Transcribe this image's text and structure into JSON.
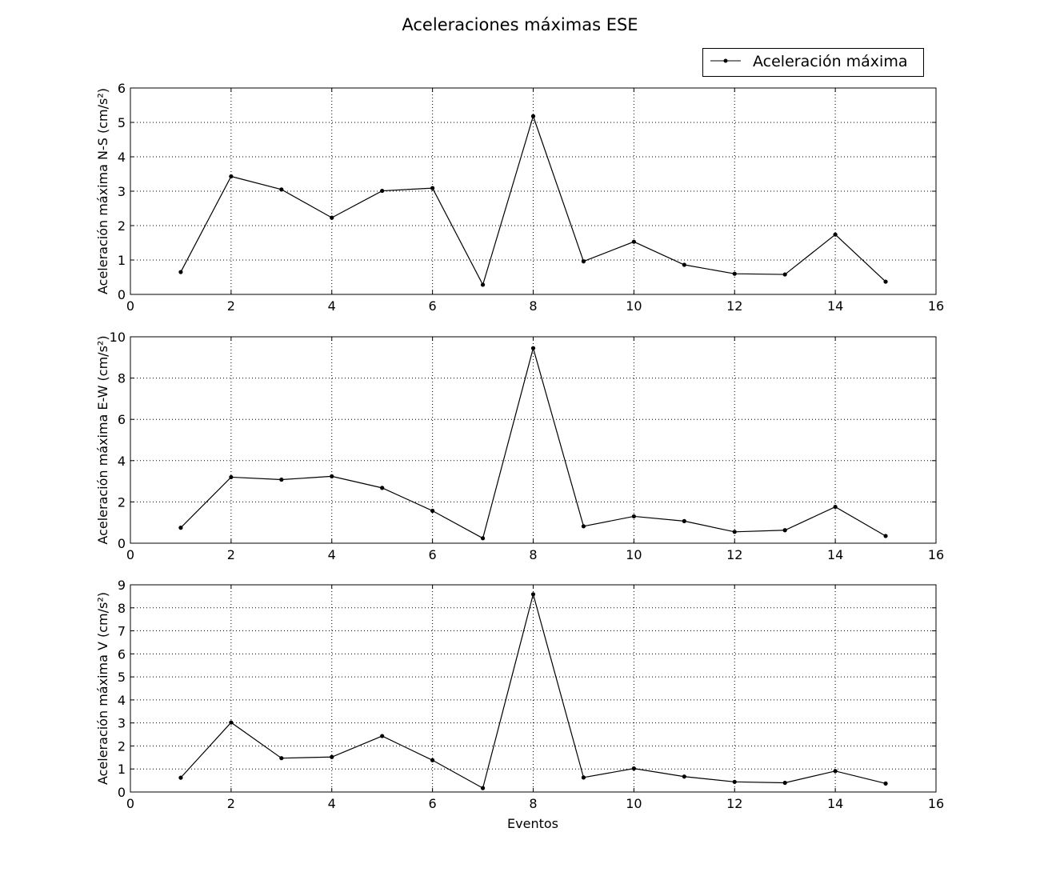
{
  "chart_data": {
    "type": "line",
    "title": "Aceleraciones máximas ESE",
    "xlabel": "Eventos",
    "legend": {
      "label": "Aceleración máxima",
      "placement": "top-right"
    },
    "grid": true,
    "colors": {
      "line": "#000000",
      "grid": "#000000",
      "background": "#ffffff"
    },
    "x": [
      1,
      2,
      3,
      4,
      5,
      6,
      7,
      8,
      9,
      10,
      11,
      12,
      13,
      14,
      15
    ],
    "panels": [
      {
        "ylabel": "Aceleración máxima N-S (cm/s²)",
        "xlim": [
          0,
          16
        ],
        "ylim": [
          0,
          6
        ],
        "xticks": [
          0,
          2,
          4,
          6,
          8,
          10,
          12,
          14,
          16
        ],
        "yticks": [
          0,
          1,
          2,
          3,
          4,
          5,
          6
        ],
        "series": [
          {
            "name": "Aceleración máxima",
            "values": [
              0.65,
              3.43,
              3.05,
              2.23,
              3.01,
              3.09,
              0.28,
              5.18,
              0.96,
              1.53,
              0.86,
              0.6,
              0.58,
              1.74,
              0.37
            ]
          }
        ]
      },
      {
        "ylabel": "Aceleración máxima E-W (cm/s²)",
        "xlim": [
          0,
          16
        ],
        "ylim": [
          0,
          10
        ],
        "xticks": [
          0,
          2,
          4,
          6,
          8,
          10,
          12,
          14,
          16
        ],
        "yticks": [
          0,
          2,
          4,
          6,
          8,
          10
        ],
        "series": [
          {
            "name": "Aceleración máxima",
            "values": [
              0.75,
              3.2,
              3.08,
              3.24,
              2.68,
              1.57,
              0.24,
              9.45,
              0.82,
              1.3,
              1.07,
              0.55,
              0.63,
              1.76,
              0.35
            ]
          }
        ]
      },
      {
        "ylabel": "Aceleración máxima V (cm/s²)",
        "xlim": [
          0,
          16
        ],
        "ylim": [
          0,
          9
        ],
        "xticks": [
          0,
          2,
          4,
          6,
          8,
          10,
          12,
          14,
          16
        ],
        "yticks": [
          0,
          1,
          2,
          3,
          4,
          5,
          6,
          7,
          8,
          9
        ],
        "series": [
          {
            "name": "Aceleración máxima",
            "values": [
              0.62,
              3.02,
              1.47,
              1.52,
              2.43,
              1.38,
              0.17,
              8.59,
              0.63,
              1.02,
              0.67,
              0.44,
              0.4,
              0.91,
              0.37
            ]
          }
        ]
      }
    ]
  }
}
